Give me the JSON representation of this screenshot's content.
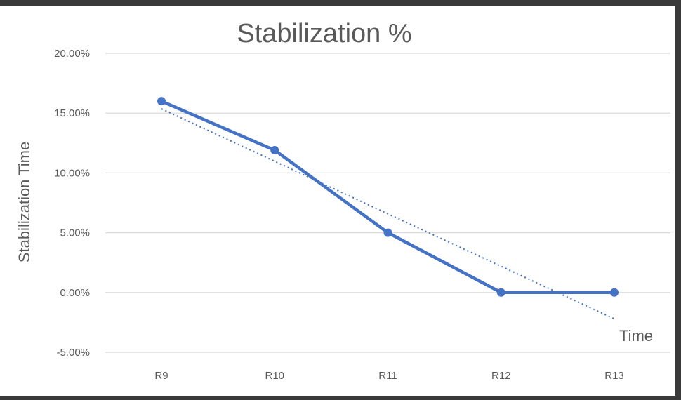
{
  "chart_data": {
    "type": "line",
    "title": "Stabilization  %",
    "xlabel": "Time",
    "ylabel": "Stabilization Time",
    "categories": [
      "R9",
      "R10",
      "R11",
      "R12",
      "R13"
    ],
    "series": [
      {
        "values": [
          0.16,
          0.119,
          0.05,
          0.0,
          0.0
        ]
      }
    ],
    "trendline": {
      "type": "linear",
      "style": "dotted"
    },
    "ylim": [
      -0.05,
      0.2
    ],
    "yticks": [
      "-5.00%",
      "0.00%",
      "5.00%",
      "10.00%",
      "15.00%",
      "20.00%"
    ],
    "grid": true,
    "legend": "none",
    "colors": {
      "series": "#4472c4",
      "grid": "#d9d9d9",
      "text": "#595959"
    }
  }
}
